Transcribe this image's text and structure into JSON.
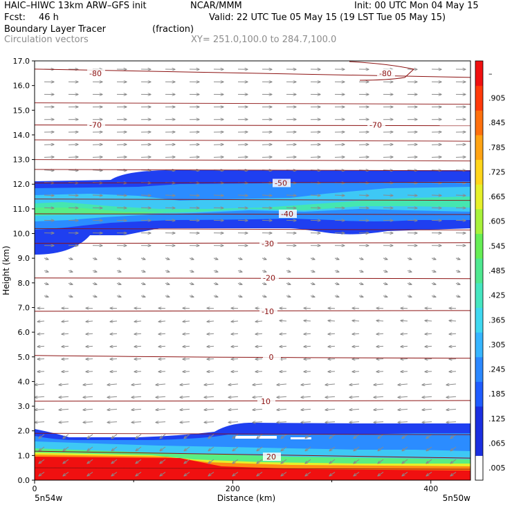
{
  "header": {
    "model": "HAIC–HIWC 13km ARW–GFS init",
    "org": "NCAR/MMM",
    "init": "Init: 00 UTC Mon 04 May 15",
    "fcst_label": "Fcst:",
    "fcst_value": "46 h",
    "valid": "Valid: 22 UTC Tue 05 May 15 (19 LST Tue 05 May 15)",
    "field_name": "Boundary Layer Tracer",
    "field_units": "(fraction)",
    "overlay_name": "Circulation vectors",
    "cross_section": "XY= 251.0,100.0 to 284.7,100.0"
  },
  "colors": {
    "contour": "#8b1010",
    "vector": "#8a8a8a",
    "scale": [
      "#1a2fe0",
      "#1f5cff",
      "#2b88ff",
      "#36b5ff",
      "#3fd8f0",
      "#45e6c0",
      "#4ee890",
      "#66ee55",
      "#a8f23a",
      "#e6f02a",
      "#ffd51a",
      "#ffa313",
      "#ff700d",
      "#ff3a0a",
      "#f01010"
    ]
  },
  "chart_data": {
    "type": "cross-section",
    "ylabel": "Height (km)",
    "xlabel": "Distance (km)",
    "ylim": [
      0,
      17
    ],
    "xlim": [
      0,
      440
    ],
    "y_ticks": [
      "0.0",
      "1.0",
      "2.0",
      "3.0",
      "4.0",
      "5.0",
      "6.0",
      "7.0",
      "8.0",
      "9.0",
      "10.0",
      "11.0",
      "12.0",
      "13.0",
      "14.0",
      "15.0",
      "16.0",
      "17.0"
    ],
    "x_ticks": [
      "0",
      "200",
      "400"
    ],
    "x_endpoints": {
      "left": "5n54w",
      "right": "5n50w"
    },
    "colorbar_labels": [
      ".005",
      ".065",
      ".125",
      ".185",
      ".245",
      ".305",
      ".365",
      ".425",
      ".485",
      ".545",
      ".605",
      ".665",
      ".725",
      ".785",
      ".845",
      ".905",
      "–"
    ],
    "temperature_contours": [
      {
        "label": "-80",
        "height_km": 16.5
      },
      {
        "label": "-70",
        "height_km": 14.4
      },
      {
        "label": "-50",
        "height_km": 12.05
      },
      {
        "label": "-40",
        "height_km": 10.8
      },
      {
        "label": "-30",
        "height_km": 9.6
      },
      {
        "label": "-20",
        "height_km": 8.2
      },
      {
        "label": "-10",
        "height_km": 6.85
      },
      {
        "label": "0",
        "height_km": 5.0
      },
      {
        "label": "10",
        "height_km": 3.2
      },
      {
        "label": "20",
        "height_km": 0.95
      }
    ]
  }
}
